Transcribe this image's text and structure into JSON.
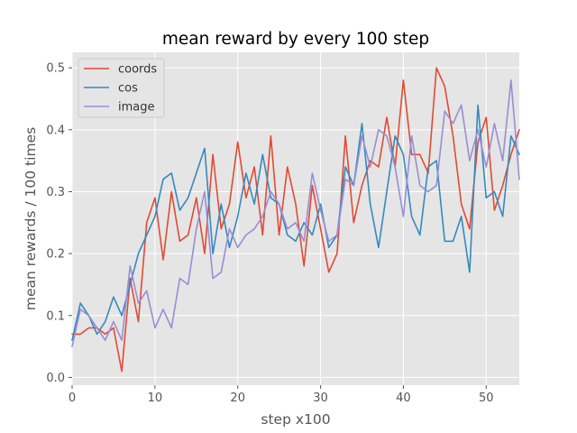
{
  "chart_data": {
    "type": "line",
    "title": "mean reward by every 100 step",
    "xlabel": "step x100",
    "ylabel": "mean rewards / 100 times",
    "xlim": [
      0,
      54
    ],
    "ylim": [
      -0.0125,
      0.525
    ],
    "xticks": [
      "0",
      "10",
      "20",
      "30",
      "40",
      "50"
    ],
    "yticks": [
      "0.0",
      "0.1",
      "0.2",
      "0.3",
      "0.4",
      "0.5"
    ],
    "grid": true,
    "legend_position": "top-left",
    "x": [
      0,
      1,
      2,
      3,
      4,
      5,
      6,
      7,
      8,
      9,
      10,
      11,
      12,
      13,
      14,
      15,
      16,
      17,
      18,
      19,
      20,
      21,
      22,
      23,
      24,
      25,
      26,
      27,
      28,
      29,
      30,
      31,
      32,
      33,
      34,
      35,
      36,
      37,
      38,
      39,
      40,
      41,
      42,
      43,
      44,
      45,
      46,
      47,
      48,
      49,
      50,
      51,
      52,
      53,
      54
    ],
    "series": [
      {
        "name": "coords",
        "color": "#E24A33",
        "values": [
          0.07,
          0.07,
          0.08,
          0.08,
          0.07,
          0.08,
          0.01,
          0.16,
          0.09,
          0.25,
          0.29,
          0.19,
          0.3,
          0.22,
          0.23,
          0.29,
          0.2,
          0.36,
          0.24,
          0.28,
          0.38,
          0.29,
          0.34,
          0.23,
          0.39,
          0.23,
          0.34,
          0.28,
          0.18,
          0.31,
          0.24,
          0.17,
          0.2,
          0.39,
          0.25,
          0.31,
          0.35,
          0.34,
          0.42,
          0.34,
          0.48,
          0.36,
          0.36,
          0.33,
          0.5,
          0.47,
          0.39,
          0.28,
          0.24,
          0.38,
          0.42,
          0.27,
          0.31,
          0.36,
          0.4
        ]
      },
      {
        "name": "cos",
        "color": "#348ABD",
        "values": [
          0.06,
          0.12,
          0.1,
          0.07,
          0.09,
          0.13,
          0.1,
          0.15,
          0.2,
          0.23,
          0.26,
          0.32,
          0.33,
          0.27,
          0.29,
          0.33,
          0.37,
          0.2,
          0.28,
          0.21,
          0.26,
          0.33,
          0.28,
          0.36,
          0.29,
          0.28,
          0.23,
          0.22,
          0.25,
          0.23,
          0.28,
          0.21,
          0.23,
          0.34,
          0.31,
          0.41,
          0.28,
          0.21,
          0.3,
          0.39,
          0.36,
          0.26,
          0.23,
          0.34,
          0.35,
          0.22,
          0.22,
          0.26,
          0.17,
          0.44,
          0.29,
          0.3,
          0.26,
          0.39,
          0.36
        ]
      },
      {
        "name": "image",
        "color": "#988ED5",
        "values": [
          0.05,
          0.11,
          0.1,
          0.08,
          0.06,
          0.09,
          0.06,
          0.18,
          0.12,
          0.14,
          0.08,
          0.11,
          0.08,
          0.16,
          0.15,
          0.24,
          0.3,
          0.16,
          0.17,
          0.24,
          0.21,
          0.23,
          0.24,
          0.26,
          0.3,
          0.28,
          0.24,
          0.25,
          0.22,
          0.33,
          0.27,
          0.22,
          0.23,
          0.32,
          0.31,
          0.39,
          0.34,
          0.4,
          0.39,
          0.34,
          0.26,
          0.39,
          0.31,
          0.3,
          0.31,
          0.43,
          0.41,
          0.44,
          0.35,
          0.4,
          0.34,
          0.41,
          0.35,
          0.48,
          0.32
        ]
      }
    ]
  }
}
